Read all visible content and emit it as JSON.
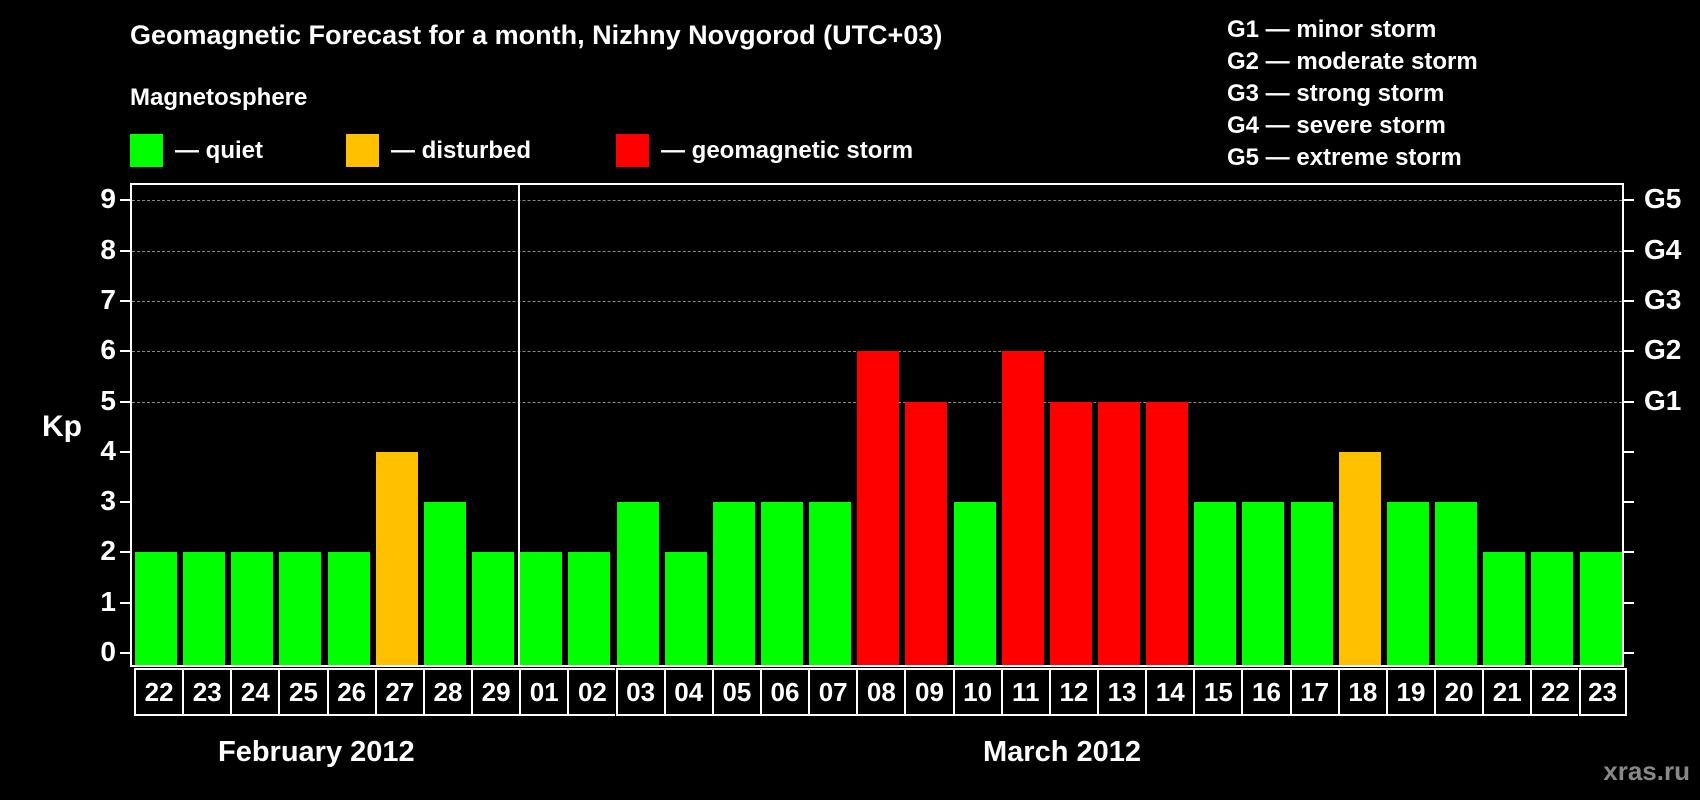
{
  "title": "Geomagnetic Forecast for a month, Nizhny Novgorod (UTC+03)",
  "subtitle": "Magnetosphere",
  "legend": [
    {
      "label": "— quiet",
      "color": "#00ff00"
    },
    {
      "label": "— disturbed",
      "color": "#ffc000"
    },
    {
      "label": "— geomagnetic storm",
      "color": "#ff0000"
    }
  ],
  "g_legend": [
    "G1 — minor storm",
    "G2 — moderate storm",
    "G3 — strong storm",
    "G4 — severe storm",
    "G5 — extreme storm"
  ],
  "y_axis_label": "Kp",
  "y_ticks": [
    "0",
    "1",
    "2",
    "3",
    "4",
    "5",
    "6",
    "7",
    "8",
    "9"
  ],
  "right_ticks": [
    {
      "kp": 5,
      "label": "G1"
    },
    {
      "kp": 6,
      "label": "G2"
    },
    {
      "kp": 7,
      "label": "G3"
    },
    {
      "kp": 8,
      "label": "G4"
    },
    {
      "kp": 9,
      "label": "G5"
    }
  ],
  "months": [
    "February 2012",
    "March 2012"
  ],
  "watermark": "xras.ru",
  "chart_data": {
    "type": "bar",
    "title": "Geomagnetic Forecast for a month, Nizhny Novgorod (UTC+03)",
    "xlabel": "",
    "ylabel": "Kp",
    "ylim": [
      0,
      9
    ],
    "grid": "dashed horizontal lines at Kp 5–9",
    "categories": [
      "22",
      "23",
      "24",
      "25",
      "26",
      "27",
      "28",
      "29",
      "01",
      "02",
      "03",
      "04",
      "05",
      "06",
      "07",
      "08",
      "09",
      "10",
      "11",
      "12",
      "13",
      "14",
      "15",
      "16",
      "17",
      "18",
      "19",
      "20",
      "21",
      "22",
      "23"
    ],
    "month_groups": [
      {
        "label": "February 2012",
        "days": [
          "22",
          "23",
          "24",
          "25",
          "26",
          "27",
          "28",
          "29"
        ]
      },
      {
        "label": "March 2012",
        "days": [
          "01",
          "02",
          "03",
          "04",
          "05",
          "06",
          "07",
          "08",
          "09",
          "10",
          "11",
          "12",
          "13",
          "14",
          "15",
          "16",
          "17",
          "18",
          "19",
          "20",
          "21",
          "22",
          "23"
        ]
      }
    ],
    "values": [
      2,
      2,
      2,
      2,
      2,
      4,
      3,
      2,
      2,
      2,
      3,
      2,
      3,
      3,
      3,
      6,
      5,
      3,
      6,
      5,
      5,
      5,
      3,
      3,
      3,
      4,
      3,
      3,
      2,
      2,
      2
    ],
    "status": [
      "quiet",
      "quiet",
      "quiet",
      "quiet",
      "quiet",
      "disturbed",
      "quiet",
      "quiet",
      "quiet",
      "quiet",
      "quiet",
      "quiet",
      "quiet",
      "quiet",
      "quiet",
      "storm",
      "storm",
      "quiet",
      "storm",
      "storm",
      "storm",
      "storm",
      "quiet",
      "quiet",
      "quiet",
      "disturbed",
      "quiet",
      "quiet",
      "quiet",
      "quiet",
      "quiet"
    ],
    "colors": {
      "quiet": "#00ff00",
      "disturbed": "#ffc000",
      "storm": "#ff0000"
    },
    "legend": [
      "quiet",
      "disturbed",
      "geomagnetic storm"
    ],
    "secondary_axis": {
      "5": "G1",
      "6": "G2",
      "7": "G3",
      "8": "G4",
      "9": "G5"
    }
  }
}
